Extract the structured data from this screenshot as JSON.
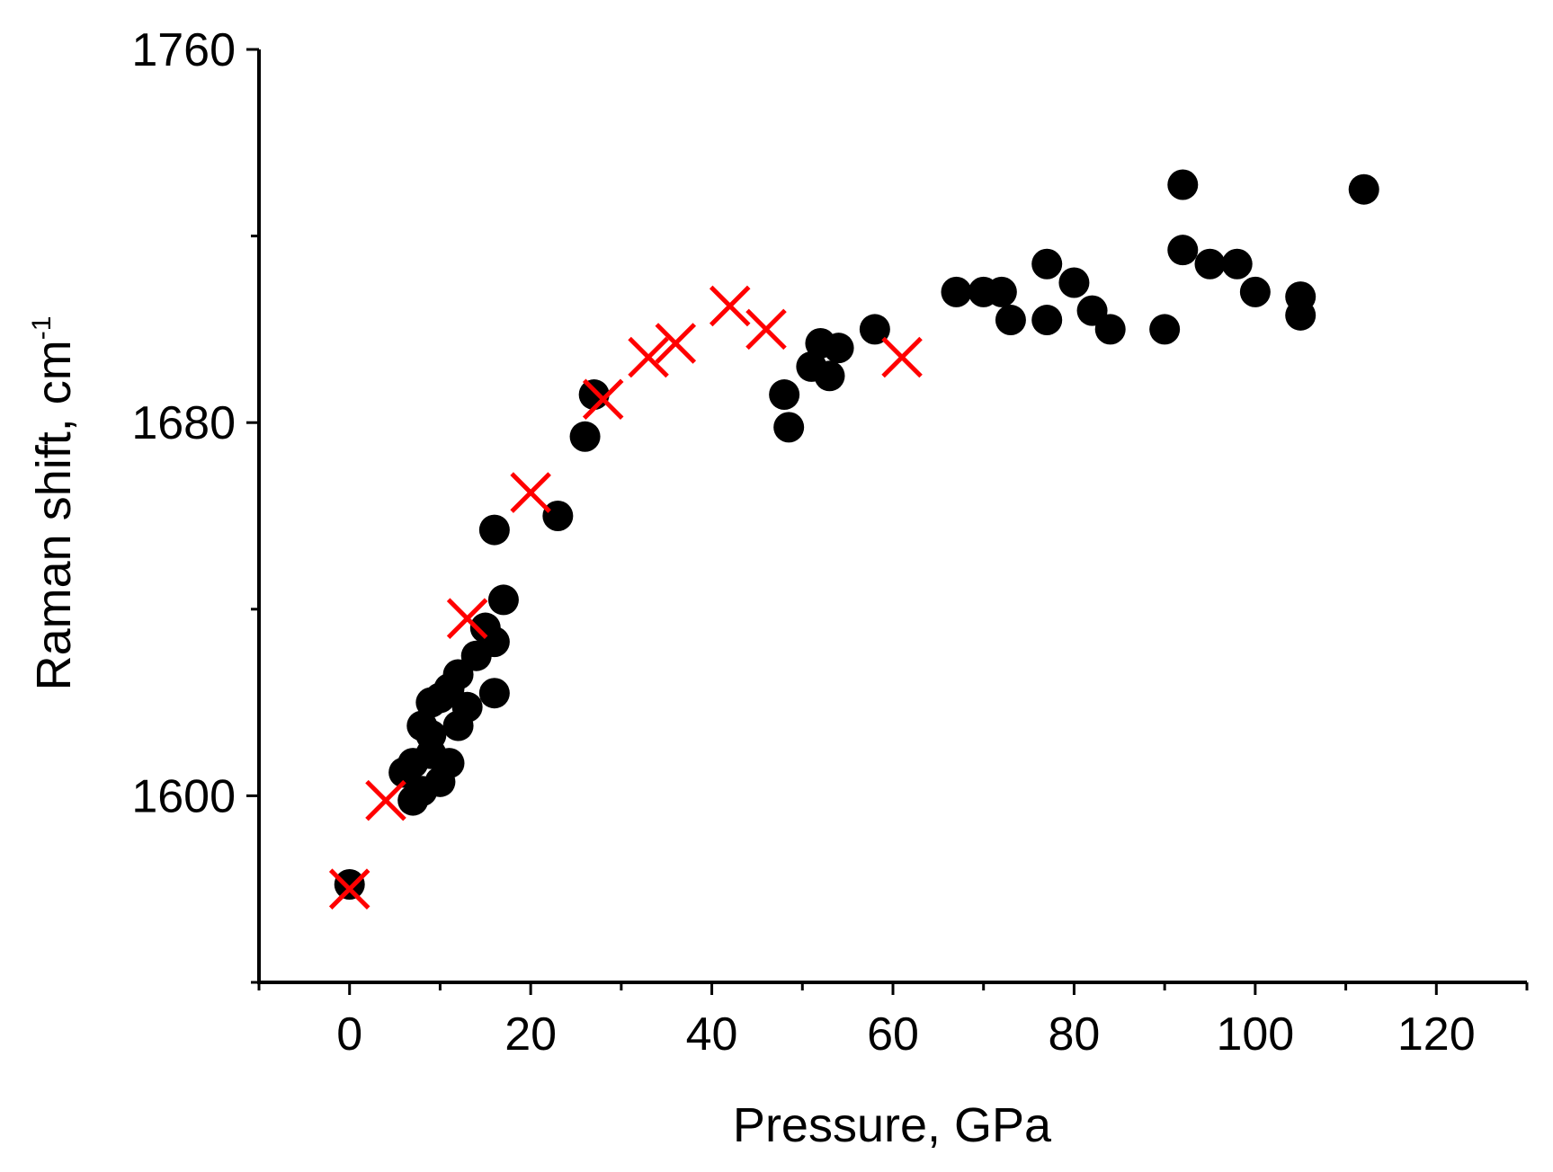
{
  "chart_data": {
    "type": "scatter",
    "xlabel": "Pressure, GPa",
    "ylabel": "Raman shift, cm",
    "ylabel_superscript": "-1",
    "xlim": [
      -10,
      130
    ],
    "ylim": [
      1560,
      1760
    ],
    "x_ticks": [
      0,
      20,
      40,
      60,
      80,
      100,
      120
    ],
    "y_ticks": [
      1600,
      1680,
      1760
    ],
    "x_minor_step": 10,
    "y_minor_step": 40,
    "grid": false,
    "legend": "none",
    "series": [
      {
        "marker": "filled-circle",
        "color": "#000000",
        "x": [
          0,
          6,
          7,
          7,
          8,
          8,
          9,
          9,
          9,
          10,
          10,
          11,
          11,
          12,
          12,
          13,
          14,
          15,
          16,
          16,
          16,
          17,
          23,
          26,
          27,
          48,
          48.5,
          51,
          52,
          53,
          54,
          58,
          67,
          70,
          72,
          73,
          77,
          77,
          80,
          82,
          84,
          90,
          92,
          92,
          95,
          98,
          100,
          105,
          105,
          112
        ],
        "y": [
          1581,
          1605,
          1599,
          1607,
          1601,
          1615,
          1609,
          1620,
          1613,
          1603,
          1621,
          1607,
          1623,
          1615,
          1626,
          1619,
          1630,
          1636,
          1633,
          1657,
          1622,
          1642,
          1660,
          1677,
          1686,
          1686,
          1679,
          1692,
          1697,
          1690,
          1696,
          1700,
          1708,
          1708,
          1708,
          1702,
          1714,
          1702,
          1710,
          1704,
          1700,
          1700,
          1731,
          1717,
          1714,
          1714,
          1708,
          1707,
          1703,
          1730
        ]
      },
      {
        "marker": "x-cross",
        "color": "#ff0000",
        "x": [
          0,
          4,
          13,
          20,
          28,
          33,
          36,
          42,
          46,
          61
        ],
        "y": [
          1580,
          1599,
          1638,
          1665,
          1685,
          1694,
          1697,
          1705,
          1700,
          1694
        ]
      }
    ]
  }
}
